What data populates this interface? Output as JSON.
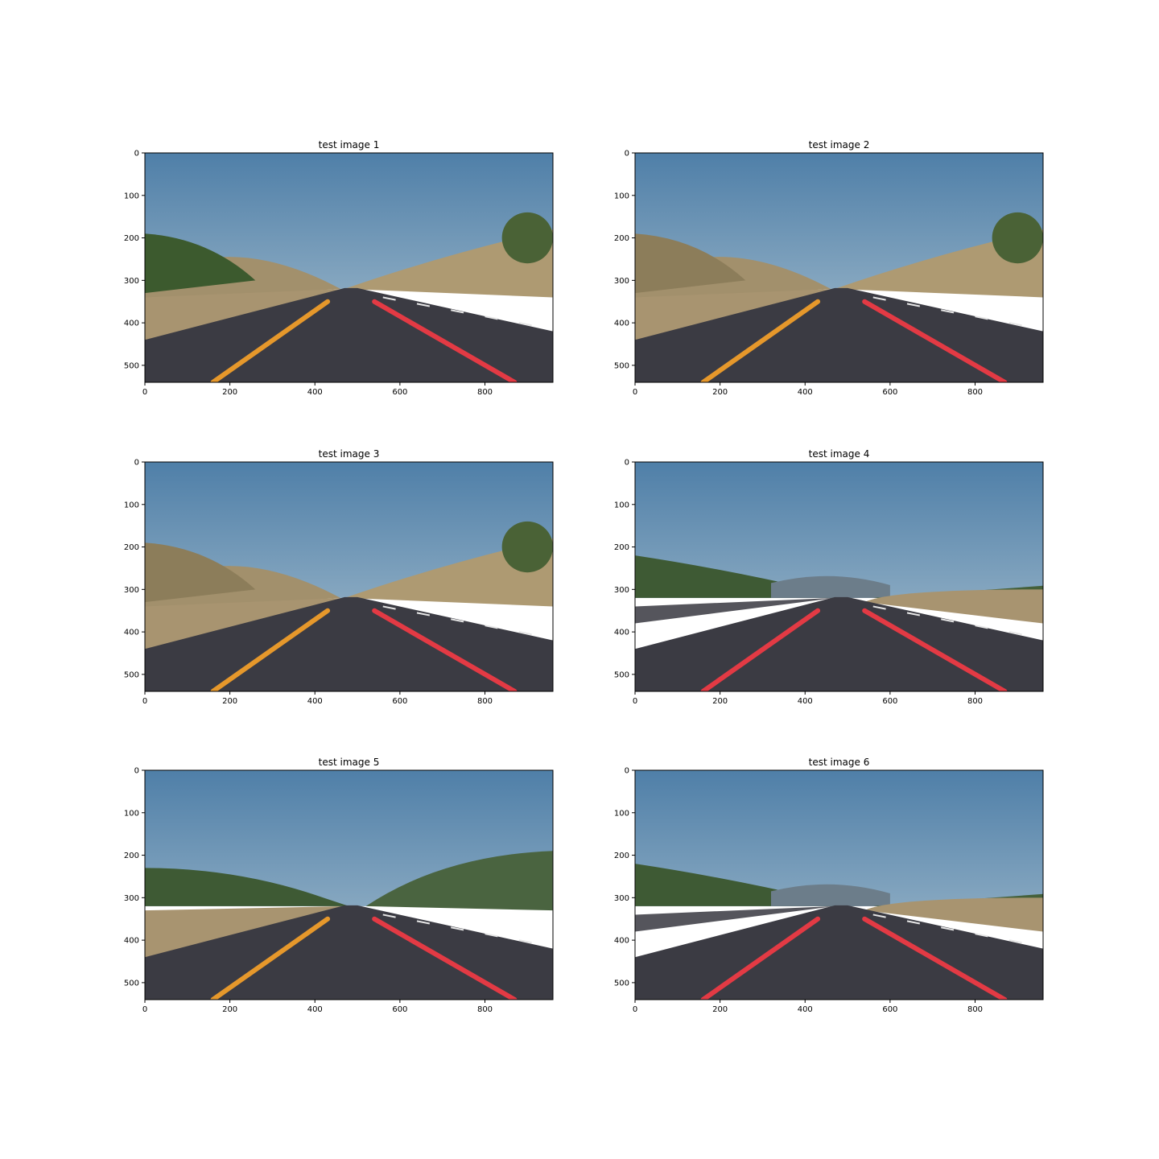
{
  "figure": {
    "panels": [
      {
        "title": "test image 1",
        "scene": "hills-left",
        "line_left": "orange",
        "line_right": "red",
        "xticks": [
          "0",
          "200",
          "400",
          "600",
          "800"
        ],
        "yticks": [
          "0",
          "100",
          "200",
          "300",
          "400",
          "500"
        ]
      },
      {
        "title": "test image 2",
        "scene": "hills-both",
        "line_left": "orange",
        "line_right": "red",
        "xticks": [
          "0",
          "200",
          "400",
          "600",
          "800"
        ],
        "yticks": [
          "0",
          "100",
          "200",
          "300",
          "400",
          "500"
        ]
      },
      {
        "title": "test image 3",
        "scene": "hills-both",
        "line_left": "orange",
        "line_right": "red",
        "xticks": [
          "0",
          "200",
          "400",
          "600",
          "800"
        ],
        "yticks": [
          "0",
          "100",
          "200",
          "300",
          "400",
          "500"
        ]
      },
      {
        "title": "test image 4",
        "scene": "traffic",
        "line_left": "red",
        "line_right": "red",
        "xticks": [
          "0",
          "200",
          "400",
          "600",
          "800"
        ],
        "yticks": [
          "0",
          "100",
          "200",
          "300",
          "400",
          "500"
        ]
      },
      {
        "title": "test image 5",
        "scene": "trees",
        "line_left": "orange",
        "line_right": "red",
        "xticks": [
          "0",
          "200",
          "400",
          "600",
          "800"
        ],
        "yticks": [
          "0",
          "100",
          "200",
          "300",
          "400",
          "500"
        ]
      },
      {
        "title": "test image 6",
        "scene": "traffic",
        "line_left": "red",
        "line_right": "red",
        "xticks": [
          "0",
          "200",
          "400",
          "600",
          "800"
        ],
        "yticks": [
          "0",
          "100",
          "200",
          "300",
          "400",
          "500"
        ]
      }
    ]
  },
  "colors": {
    "sky": "#5a84a8",
    "road": "#3b3b43",
    "lane_orange": "#f5a02a",
    "lane_red": "#f23a45",
    "vegetation": "#3f5e2e",
    "grass": "#a89470"
  }
}
